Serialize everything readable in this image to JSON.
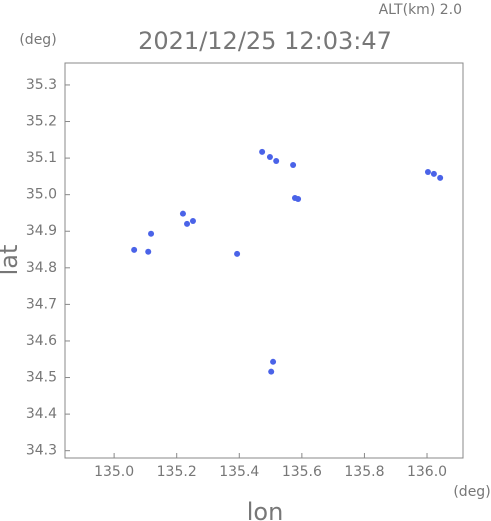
{
  "chart_data": {
    "type": "scatter",
    "title": "2021/12/25 12:03:47",
    "altitude_label": "ALT(km)",
    "altitude": "2.0",
    "x_label": "lon",
    "y_label": "lat",
    "x_unit": "(deg)",
    "y_unit": "(deg)",
    "xlim": [
      134.843,
      136.115
    ],
    "ylim": [
      34.28,
      35.36
    ],
    "xticks": [
      {
        "value": 135.0,
        "label": "135.0"
      },
      135.2,
      135.4,
      135.6,
      135.8,
      {
        "value": 136.0,
        "label": "136.0"
      }
    ],
    "yticks": [
      34.3,
      34.4,
      34.5,
      34.6,
      34.7,
      34.8,
      34.9,
      {
        "value": 35.0,
        "label": "35.0"
      },
      35.1,
      35.2,
      35.3
    ],
    "series": [
      {
        "color": "#4a63e8",
        "x": [
          135.473,
          135.498,
          135.518,
          135.572,
          135.578,
          135.588,
          136.003,
          136.022,
          136.042,
          135.22,
          135.233,
          135.252,
          135.118,
          135.064,
          135.109,
          135.393,
          135.508,
          135.502
        ],
        "values": [
          35.117,
          35.103,
          35.092,
          35.081,
          34.991,
          34.988,
          35.062,
          35.057,
          35.046,
          34.948,
          34.92,
          34.928,
          34.893,
          34.849,
          34.844,
          34.838,
          34.543,
          34.516
        ]
      }
    ]
  }
}
